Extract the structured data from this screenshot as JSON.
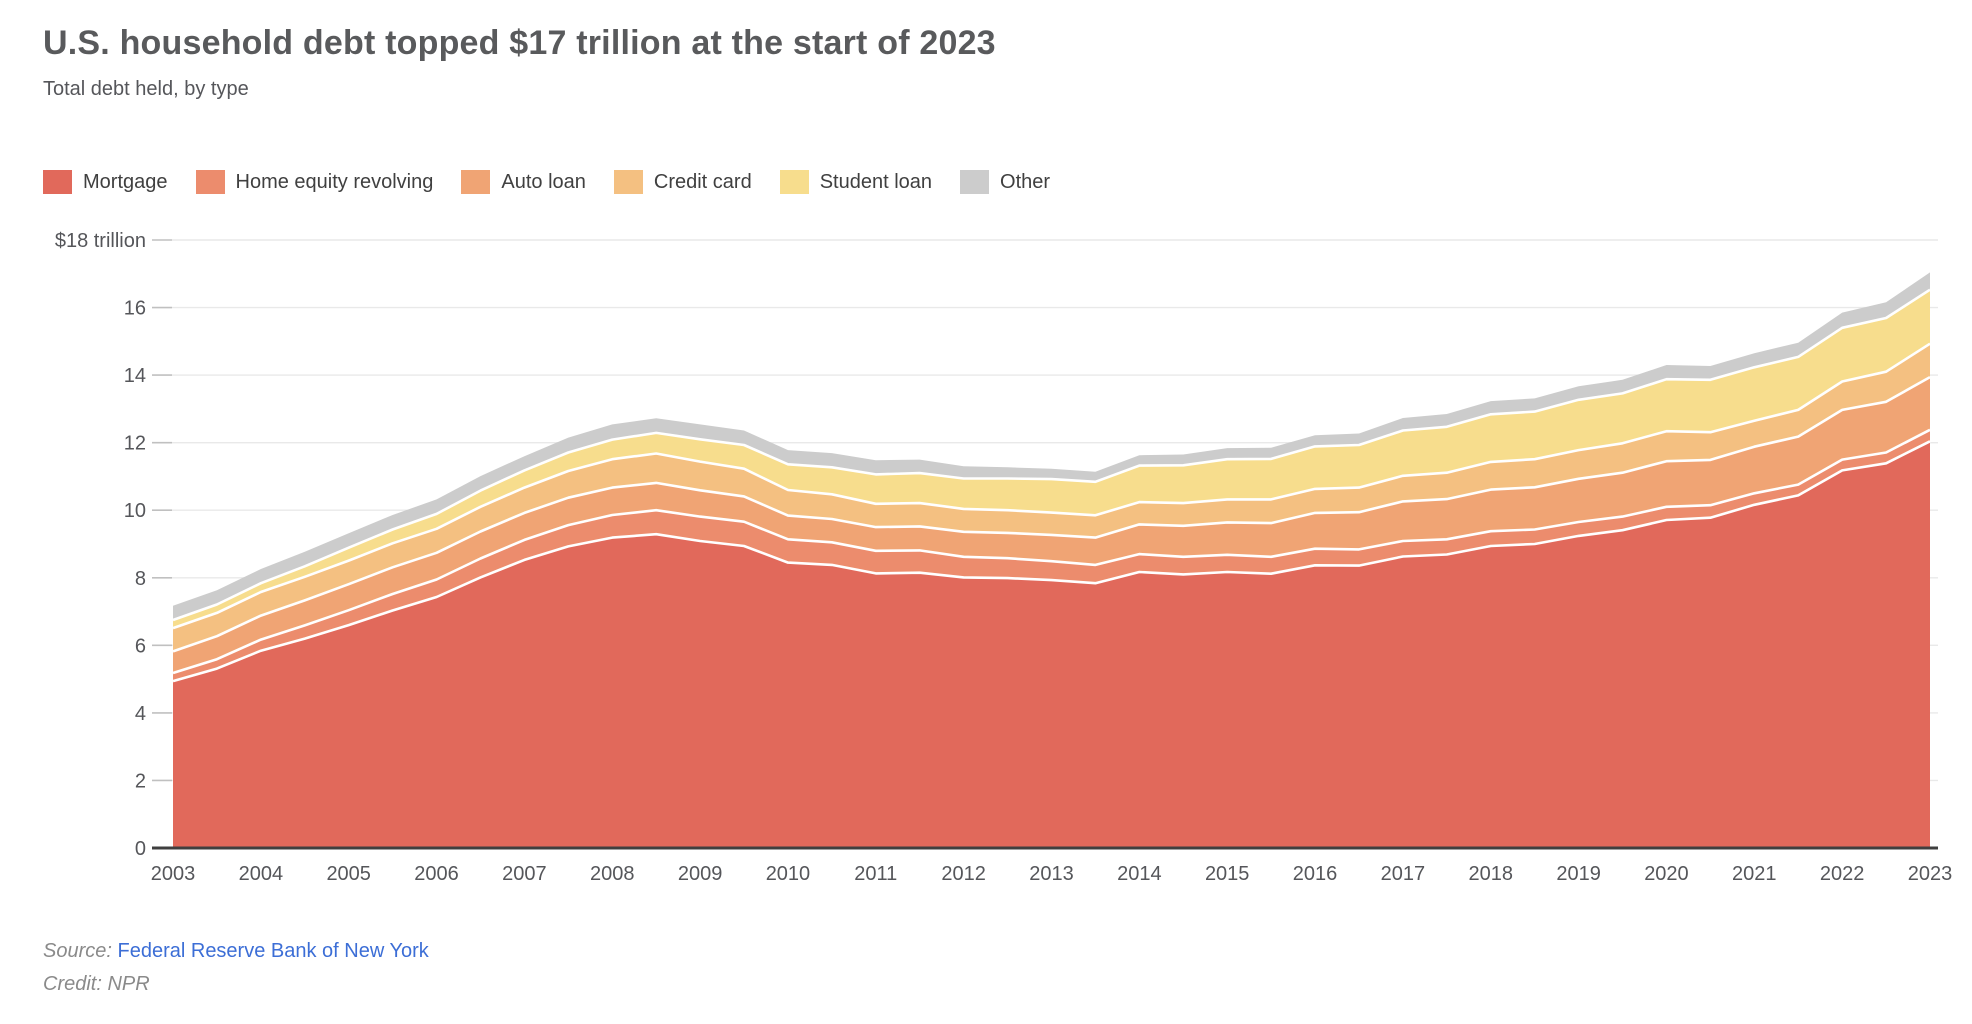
{
  "header": {
    "title": "U.S. household debt topped $17 trillion at the start of 2023",
    "subtitle": "Total debt held, by type"
  },
  "footer": {
    "source_label": "Source:",
    "source_link": "Federal Reserve Bank of New York",
    "credit": "Credit: NPR",
    "link_color": "#3c6ed6",
    "text_color": "#8a8a8a"
  },
  "chart_data": {
    "type": "area",
    "stacked": true,
    "title": "U.S. household debt topped $17 trillion at the start of 2023",
    "subtitle": "Total debt held, by type",
    "units": "trillions of U.S. dollars",
    "legend_position": "top",
    "grid": true,
    "ylim": [
      0,
      18
    ],
    "yticks": [
      {
        "v": 18,
        "label": "$18 trillion"
      },
      {
        "v": 16,
        "label": "16"
      },
      {
        "v": 14,
        "label": "14"
      },
      {
        "v": 12,
        "label": "12"
      },
      {
        "v": 10,
        "label": "10"
      },
      {
        "v": 8,
        "label": "8"
      },
      {
        "v": 6,
        "label": "6"
      },
      {
        "v": 4,
        "label": "4"
      },
      {
        "v": 2,
        "label": "2"
      },
      {
        "v": 0,
        "label": "0"
      }
    ],
    "xticks": [
      2003,
      2004,
      2005,
      2006,
      2007,
      2008,
      2009,
      2010,
      2011,
      2012,
      2013,
      2014,
      2015,
      2016,
      2017,
      2018,
      2019,
      2020,
      2021,
      2022,
      2023
    ],
    "x": [
      2003,
      2003.5,
      2004,
      2004.5,
      2005,
      2005.5,
      2006,
      2006.5,
      2007,
      2007.5,
      2008,
      2008.5,
      2009,
      2009.5,
      2010,
      2010.5,
      2011,
      2011.5,
      2012,
      2012.5,
      2013,
      2013.5,
      2014,
      2014.5,
      2015,
      2015.5,
      2016,
      2016.5,
      2017,
      2017.5,
      2018,
      2018.5,
      2019,
      2019.5,
      2020,
      2020.5,
      2021,
      2021.5,
      2022,
      2022.5,
      2023
    ],
    "series": [
      {
        "name": "Mortgage",
        "color": "#e1695b",
        "values": [
          4.94,
          5.31,
          5.84,
          6.2,
          6.6,
          7.03,
          7.43,
          8.01,
          8.53,
          8.93,
          9.19,
          9.29,
          9.09,
          8.94,
          8.45,
          8.38,
          8.13,
          8.15,
          8.01,
          7.99,
          7.93,
          7.84,
          8.17,
          8.1,
          8.17,
          8.12,
          8.37,
          8.36,
          8.63,
          8.69,
          8.94,
          9.0,
          9.24,
          9.41,
          9.71,
          9.78,
          10.16,
          10.44,
          11.18,
          11.39,
          12.04
        ]
      },
      {
        "name": "Home equity revolving",
        "color": "#ec8c6d",
        "values": [
          0.24,
          0.28,
          0.33,
          0.39,
          0.44,
          0.49,
          0.52,
          0.56,
          0.59,
          0.63,
          0.67,
          0.71,
          0.72,
          0.72,
          0.69,
          0.67,
          0.67,
          0.66,
          0.61,
          0.59,
          0.56,
          0.54,
          0.53,
          0.52,
          0.51,
          0.5,
          0.49,
          0.48,
          0.46,
          0.45,
          0.44,
          0.43,
          0.41,
          0.4,
          0.39,
          0.37,
          0.34,
          0.32,
          0.32,
          0.32,
          0.34
        ]
      },
      {
        "name": "Auto loan",
        "color": "#f0a474",
        "values": [
          0.64,
          0.68,
          0.71,
          0.74,
          0.77,
          0.79,
          0.79,
          0.8,
          0.8,
          0.81,
          0.81,
          0.81,
          0.78,
          0.75,
          0.7,
          0.69,
          0.7,
          0.71,
          0.74,
          0.75,
          0.78,
          0.81,
          0.88,
          0.92,
          0.96,
          1.0,
          1.06,
          1.1,
          1.17,
          1.19,
          1.23,
          1.25,
          1.28,
          1.3,
          1.35,
          1.34,
          1.38,
          1.42,
          1.47,
          1.5,
          1.56
        ]
      },
      {
        "name": "Credit card",
        "color": "#f4c081",
        "values": [
          0.69,
          0.69,
          0.7,
          0.7,
          0.7,
          0.71,
          0.71,
          0.73,
          0.75,
          0.79,
          0.84,
          0.87,
          0.85,
          0.82,
          0.76,
          0.73,
          0.69,
          0.69,
          0.68,
          0.67,
          0.66,
          0.66,
          0.66,
          0.67,
          0.68,
          0.7,
          0.71,
          0.73,
          0.76,
          0.78,
          0.82,
          0.83,
          0.85,
          0.87,
          0.89,
          0.82,
          0.77,
          0.79,
          0.84,
          0.89,
          0.99
        ]
      },
      {
        "name": "Student loan",
        "color": "#f7dd8d",
        "values": [
          0.24,
          0.25,
          0.26,
          0.31,
          0.38,
          0.41,
          0.44,
          0.48,
          0.51,
          0.55,
          0.58,
          0.61,
          0.66,
          0.7,
          0.76,
          0.8,
          0.87,
          0.89,
          0.9,
          0.94,
          0.99,
          0.99,
          1.08,
          1.12,
          1.19,
          1.2,
          1.26,
          1.26,
          1.34,
          1.36,
          1.41,
          1.41,
          1.49,
          1.48,
          1.54,
          1.55,
          1.58,
          1.57,
          1.59,
          1.59,
          1.6
        ]
      },
      {
        "name": "Other",
        "color": "#cccccc",
        "values": [
          0.42,
          0.42,
          0.42,
          0.43,
          0.43,
          0.43,
          0.43,
          0.43,
          0.42,
          0.44,
          0.45,
          0.43,
          0.44,
          0.43,
          0.42,
          0.42,
          0.42,
          0.4,
          0.36,
          0.33,
          0.31,
          0.3,
          0.31,
          0.32,
          0.33,
          0.33,
          0.33,
          0.34,
          0.37,
          0.38,
          0.39,
          0.39,
          0.4,
          0.4,
          0.42,
          0.41,
          0.42,
          0.42,
          0.45,
          0.47,
          0.51
        ]
      }
    ],
    "separator_color": "#ffffff",
    "grid_color": "#e9e9e9",
    "tick_color": "#c0c0c0",
    "axis_color": "#3f3f3f",
    "label_color": "#55565a"
  }
}
